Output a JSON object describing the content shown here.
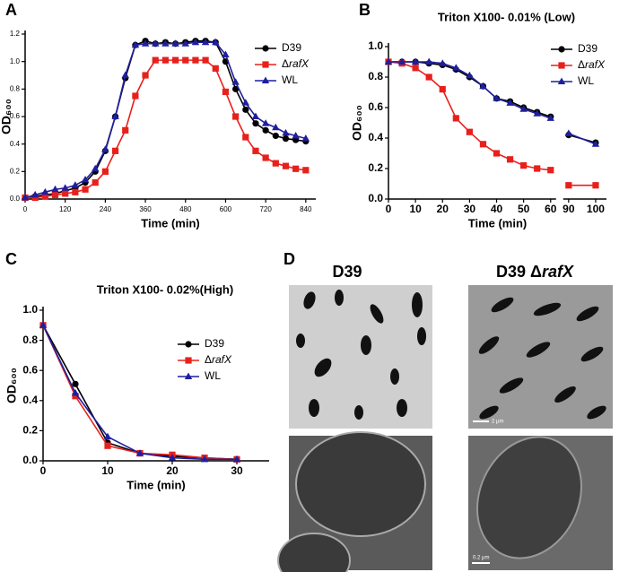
{
  "panel_labels": [
    "A",
    "B",
    "C",
    "D"
  ],
  "chart_data": [
    {
      "type": "line",
      "xlabel": "Time (min)",
      "ylabel": "OD₆₀₀",
      "x": [
        0,
        30,
        60,
        90,
        120,
        150,
        180,
        210,
        240,
        270,
        300,
        330,
        360,
        390,
        420,
        450,
        480,
        510,
        540,
        570,
        600,
        630,
        660,
        690,
        720,
        750,
        780,
        810,
        840
      ],
      "series": [
        {
          "name": "D39",
          "color": "#000000",
          "marker": "circle",
          "values": [
            0.01,
            0.02,
            0.03,
            0.04,
            0.06,
            0.08,
            0.12,
            0.2,
            0.35,
            0.6,
            0.88,
            1.12,
            1.15,
            1.13,
            1.14,
            1.13,
            1.14,
            1.15,
            1.15,
            1.14,
            1.0,
            0.8,
            0.65,
            0.55,
            0.5,
            0.46,
            0.44,
            0.43,
            0.42
          ]
        },
        {
          "name": "ΔrafX",
          "color": "#e8201c",
          "marker": "square",
          "values": [
            0.01,
            0.01,
            0.02,
            0.03,
            0.04,
            0.05,
            0.07,
            0.12,
            0.2,
            0.35,
            0.5,
            0.75,
            0.9,
            1.01,
            1.01,
            1.01,
            1.01,
            1.01,
            1.01,
            0.95,
            0.78,
            0.6,
            0.45,
            0.35,
            0.3,
            0.26,
            0.24,
            0.22,
            0.21
          ]
        },
        {
          "name": "WL",
          "color": "#1f1f9e",
          "marker": "triangle",
          "values": [
            0.01,
            0.03,
            0.05,
            0.07,
            0.08,
            0.1,
            0.14,
            0.22,
            0.36,
            0.6,
            0.9,
            1.12,
            1.13,
            1.13,
            1.13,
            1.13,
            1.13,
            1.14,
            1.14,
            1.14,
            1.05,
            0.85,
            0.7,
            0.6,
            0.55,
            0.52,
            0.48,
            0.46,
            0.44
          ]
        }
      ],
      "xlim": [
        0,
        870
      ],
      "xticks": [
        0,
        120,
        240,
        360,
        480,
        600,
        720,
        840
      ],
      "ylim": [
        0,
        1.2
      ],
      "yticks": [
        {
          "value": 0,
          "label": "0.0"
        },
        {
          "value": 0.2,
          "label": "0.2"
        },
        {
          "value": 0.4,
          "label": "0.4"
        },
        {
          "value": 0.6,
          "label": "0.6"
        },
        {
          "value": 0.8,
          "label": "0.8"
        },
        {
          "value": 1.0,
          "label": "1.0"
        },
        {
          "value": 1.2,
          "label": "1.2"
        }
      ],
      "legend": "upper right"
    },
    {
      "type": "line",
      "title": "Triton X100- 0.01% (Low)",
      "xlabel": "Time (min)",
      "ylabel": "OD₆₀₀",
      "x": [
        0,
        5,
        10,
        15,
        20,
        25,
        30,
        35,
        40,
        45,
        50,
        55,
        60,
        90,
        100
      ],
      "series": [
        {
          "name": "D39",
          "color": "#000000",
          "marker": "circle",
          "values": [
            0.9,
            0.9,
            0.9,
            0.89,
            0.88,
            0.85,
            0.8,
            0.74,
            0.66,
            0.64,
            0.6,
            0.57,
            0.54,
            0.42,
            0.37
          ]
        },
        {
          "name": "ΔrafX",
          "color": "#e8201c",
          "marker": "square",
          "values": [
            0.9,
            0.89,
            0.86,
            0.8,
            0.72,
            0.53,
            0.44,
            0.36,
            0.3,
            0.26,
            0.22,
            0.2,
            0.19,
            0.09,
            0.09
          ]
        },
        {
          "name": "WL",
          "color": "#1f1f9e",
          "marker": "triangle",
          "values": [
            0.9,
            0.9,
            0.9,
            0.9,
            0.89,
            0.86,
            0.81,
            0.74,
            0.66,
            0.63,
            0.59,
            0.56,
            0.53,
            0.43,
            0.36
          ]
        }
      ],
      "xlim": [
        0,
        104
      ],
      "xsegments": [
        [
          0,
          62
        ],
        [
          88,
          104
        ]
      ],
      "xticks": [
        0,
        10,
        20,
        30,
        40,
        50,
        60,
        90,
        100
      ],
      "ylim": [
        0,
        1.0
      ],
      "yticks": [
        {
          "value": 0,
          "label": "0.0"
        },
        {
          "value": 0.2,
          "label": "0.2"
        },
        {
          "value": 0.4,
          "label": "0.4"
        },
        {
          "value": 0.6,
          "label": "0.6"
        },
        {
          "value": 0.8,
          "label": "0.8"
        },
        {
          "value": 1.0,
          "label": "1.0"
        }
      ],
      "legend": "upper right"
    },
    {
      "type": "line",
      "title": "Triton X100- 0.02%(High)",
      "xlabel": "Time (min)",
      "ylabel": "OD₆₀₀",
      "x": [
        0,
        5,
        10,
        15,
        20,
        25,
        30
      ],
      "series": [
        {
          "name": "D39",
          "color": "#000000",
          "marker": "circle",
          "values": [
            0.9,
            0.51,
            0.12,
            0.05,
            0.03,
            0.02,
            0.01
          ]
        },
        {
          "name": "ΔrafX",
          "color": "#e8201c",
          "marker": "square",
          "values": [
            0.9,
            0.43,
            0.1,
            0.05,
            0.04,
            0.02,
            0.01
          ]
        },
        {
          "name": "WL",
          "color": "#1f1f9e",
          "marker": "triangle",
          "values": [
            0.9,
            0.45,
            0.16,
            0.05,
            0.02,
            0.01,
            0.01
          ]
        }
      ],
      "xlim": [
        0,
        35
      ],
      "xticks": [
        0,
        10,
        20,
        30
      ],
      "ylim": [
        0,
        1.0
      ],
      "yticks": [
        {
          "value": 0,
          "label": "0.0"
        },
        {
          "value": 0.2,
          "label": "0.2"
        },
        {
          "value": 0.4,
          "label": "0.4"
        },
        {
          "value": 0.6,
          "label": "0.6"
        },
        {
          "value": 0.8,
          "label": "0.8"
        },
        {
          "value": 1.0,
          "label": "1.0"
        }
      ],
      "legend": "center right"
    }
  ],
  "micrographs": {
    "columns": [
      "D39",
      "D39 ΔrafX"
    ],
    "scale_bars": [
      "2 μm",
      "0.2 μm"
    ]
  }
}
